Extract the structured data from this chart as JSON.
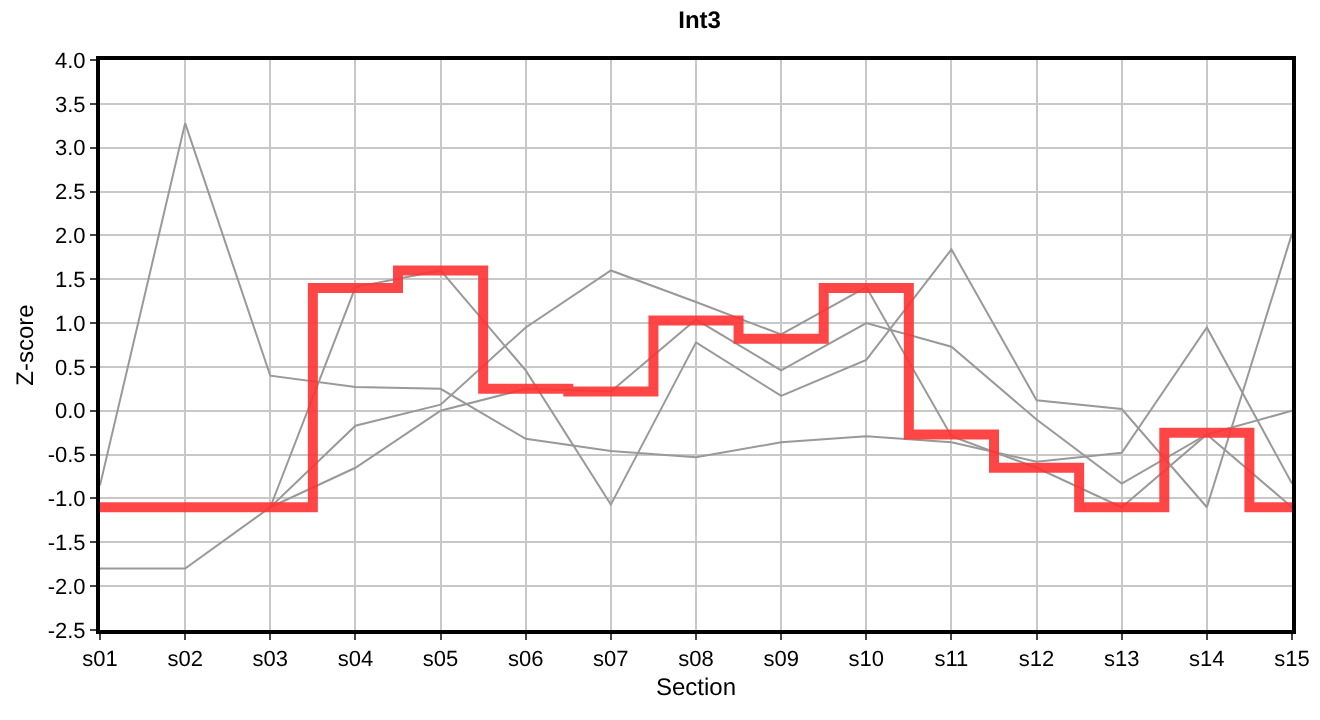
{
  "chart_data": {
    "type": "line",
    "title": "Int3",
    "xlabel": "Section",
    "ylabel": "Z-score",
    "categories": [
      "s01",
      "s02",
      "s03",
      "s04",
      "s05",
      "s06",
      "s07",
      "s08",
      "s09",
      "s10",
      "s11",
      "s12",
      "s13",
      "s14",
      "s15"
    ],
    "series": [
      {
        "color": "#999999",
        "values": [
          -0.85,
          3.28,
          0.4,
          0.27,
          0.25,
          -0.32,
          -0.46,
          -0.53,
          -0.36,
          -0.29,
          -0.36,
          -0.58,
          -0.48,
          0.95,
          -0.83
        ]
      },
      {
        "color": "#999999",
        "values": [
          -1.8,
          -1.8,
          -1.1,
          -0.17,
          0.07,
          0.95,
          1.6,
          1.24,
          0.87,
          1.41,
          -0.29,
          -0.65,
          -1.1,
          -0.27,
          0.0
        ]
      },
      {
        "color": "#999999",
        "values": [
          null,
          null,
          -1.1,
          1.41,
          1.6,
          0.46,
          -1.07,
          0.78,
          0.17,
          0.58,
          1.84,
          0.12,
          0.02,
          -1.1,
          2.02
        ]
      },
      {
        "color": "#999999",
        "values": [
          null,
          null,
          -1.1,
          -0.65,
          0.0,
          0.25,
          0.22,
          1.04,
          0.46,
          1.0,
          0.73,
          -0.1,
          -0.83,
          -0.27,
          -1.1
        ]
      },
      {
        "type": "step",
        "color": "#ff3333",
        "values": [
          -1.1,
          -1.1,
          -1.1,
          1.4,
          1.6,
          0.25,
          0.22,
          1.03,
          0.82,
          1.4,
          -0.27,
          -0.65,
          -1.1,
          -0.25,
          -1.1
        ]
      }
    ],
    "ylim": [
      -2.5,
      4.0
    ],
    "yticks": [
      {
        "value": -2.5,
        "label": "-2.5"
      },
      {
        "value": -2,
        "label": "-2.0"
      },
      {
        "value": -1.5,
        "label": "-1.5"
      },
      {
        "value": -1,
        "label": "-1.0"
      },
      {
        "value": -0.5,
        "label": "-0.5"
      },
      {
        "value": 0,
        "label": "0.0"
      },
      {
        "value": 0.5,
        "label": "0.5"
      },
      {
        "value": 1,
        "label": "1.0"
      },
      {
        "value": 1.5,
        "label": "1.5"
      },
      {
        "value": 2,
        "label": "2.0"
      },
      {
        "value": 2.5,
        "label": "2.5"
      },
      {
        "value": 3,
        "label": "3.0"
      },
      {
        "value": 3.5,
        "label": "3.5"
      },
      {
        "value": 4,
        "label": "4.0"
      }
    ],
    "grid": true
  }
}
